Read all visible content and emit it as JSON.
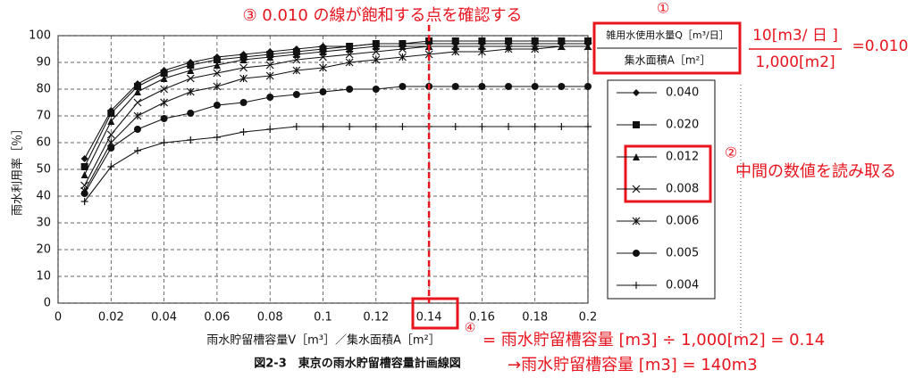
{
  "chart_data": {
    "type": "line",
    "title": "③ 0.010 の線が飽和する点を確認する",
    "ylabel": "雨水利用率［％］",
    "xlabel": "雨水貯留槽容量V［m³］／集水面積A［m²］",
    "caption": "図2-3　東京の雨水貯留槽容量計画線図",
    "x": [
      0.01,
      0.02,
      0.03,
      0.04,
      0.05,
      0.06,
      0.07,
      0.08,
      0.09,
      0.1,
      0.11,
      0.12,
      0.13,
      0.14,
      0.15,
      0.16,
      0.17,
      0.18,
      0.19,
      0.2
    ],
    "series": [
      {
        "name": "0.040",
        "color": "#111111",
        "marker": "diamond",
        "values": [
          54,
          72,
          82,
          87,
          90,
          92,
          93,
          94,
          95,
          96,
          96,
          97,
          97,
          97,
          97,
          97,
          97,
          97,
          97,
          97
        ]
      },
      {
        "name": "0.020",
        "color": "#111111",
        "marker": "square",
        "values": [
          51,
          71,
          81,
          86,
          89,
          91,
          92,
          93,
          94,
          95,
          96,
          97,
          97,
          98,
          98,
          98,
          98,
          98,
          98,
          98
        ]
      },
      {
        "name": "0.012",
        "color": "#111111",
        "marker": "triangle",
        "values": [
          48,
          68,
          79,
          84,
          87,
          89,
          91,
          92,
          93,
          94,
          95,
          96,
          96,
          96,
          96,
          96,
          96,
          96,
          96,
          96
        ]
      },
      {
        "name": "0.008",
        "color": "#111111",
        "marker": "x",
        "values": [
          44,
          63,
          75,
          80,
          84,
          86,
          88,
          89,
          91,
          92,
          93,
          94,
          95,
          96,
          96,
          96,
          96,
          96,
          96,
          96
        ]
      },
      {
        "name": "0.006",
        "color": "#111111",
        "marker": "asterisk",
        "values": [
          42,
          60,
          70,
          75,
          79,
          81,
          84,
          85,
          87,
          88,
          90,
          91,
          92,
          93,
          94,
          94,
          95,
          95,
          96,
          96
        ]
      },
      {
        "name": "0.005",
        "color": "#111111",
        "marker": "circle",
        "values": [
          41,
          58,
          65,
          69,
          71,
          74,
          75,
          77,
          78,
          79,
          80,
          80,
          81,
          81,
          81,
          81,
          81,
          81,
          81,
          81
        ]
      },
      {
        "name": "0.004",
        "color": "#111111",
        "marker": "plus",
        "values": [
          38,
          51,
          57,
          60,
          61,
          62,
          64,
          65,
          66,
          66,
          66,
          66,
          66,
          66,
          66,
          66,
          66,
          66,
          66,
          66
        ]
      }
    ],
    "xlim": [
      0,
      0.2
    ],
    "xticks": [
      0,
      0.02,
      0.04,
      0.06,
      0.08,
      0.1,
      0.12,
      0.14,
      0.16,
      0.18,
      0.2
    ],
    "ylim": [
      0,
      100
    ],
    "yticks": [
      0,
      10,
      20,
      30,
      40,
      50,
      60,
      70,
      80,
      90,
      100
    ],
    "grid": true,
    "highlight_x": 0.14,
    "highlight_color": "#e8141e",
    "annotations": {
      "step1": "①",
      "box_top": "雑用水使用水量Q［m³/日］",
      "box_bottom": "集水面積A［m²］",
      "numerator": "10[m3/ 日 ]",
      "denominator": "1,000[m2]",
      "ratio": "=0.010",
      "step2": "②",
      "step2_text": "中間の数値を読み取る",
      "step4": "④",
      "step4_line1": "= 雨水貯留槽容量 [m3] ÷ 1,000[m2] = 0.14",
      "step4_line2": "→雨水貯留槽容量 [m3] = 140m3"
    }
  }
}
